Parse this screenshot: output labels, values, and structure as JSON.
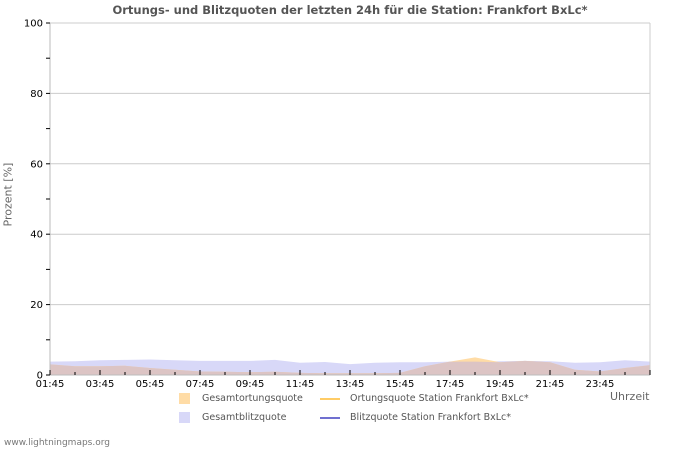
{
  "chart_data": {
    "type": "area",
    "title": "Ortungs- und Blitzquoten der letzten 24h für die Station: Frankfort BxLc*",
    "xlabel": "Uhrzeit",
    "ylabel": "Prozent   [%]",
    "ylim": [
      0,
      100
    ],
    "yticks": [
      0,
      20,
      40,
      60,
      80,
      100
    ],
    "xtick_labels": [
      "01:45",
      "03:45",
      "05:45",
      "07:45",
      "09:45",
      "11:45",
      "13:45",
      "15:45",
      "17:45",
      "19:45",
      "21:45",
      "23:45"
    ],
    "grid": true,
    "legend_position": "bottom",
    "x": [
      "01:45",
      "02:45",
      "03:45",
      "04:45",
      "05:45",
      "06:45",
      "07:45",
      "08:45",
      "09:45",
      "10:45",
      "11:45",
      "12:45",
      "13:45",
      "14:45",
      "15:45",
      "16:45",
      "17:45",
      "18:45",
      "19:45",
      "20:45",
      "21:45",
      "22:45",
      "23:45",
      "00:45",
      "01:45"
    ],
    "series": [
      {
        "name": "Gesamtortungsquote",
        "kind": "area",
        "color": "#ffd9a0",
        "values": [
          3.0,
          2.5,
          2.5,
          2.6,
          2.0,
          1.5,
          1.0,
          0.9,
          0.8,
          0.9,
          0.6,
          0.5,
          0.5,
          0.5,
          0.6,
          2.5,
          3.8,
          5.0,
          3.6,
          4.0,
          3.6,
          1.5,
          1.0,
          2.0,
          2.8
        ]
      },
      {
        "name": "Gesamtblitzquote",
        "kind": "area",
        "color": "#d8d8f8",
        "values": [
          3.8,
          3.9,
          4.2,
          4.3,
          4.4,
          4.2,
          4.0,
          4.0,
          4.0,
          4.3,
          3.5,
          3.7,
          3.1,
          3.5,
          3.6,
          3.6,
          3.8,
          3.8,
          3.9,
          4.0,
          3.9,
          3.5,
          3.6,
          4.2,
          3.8
        ]
      },
      {
        "name": "Ortungsquote Station Frankfort BxLc*",
        "kind": "line",
        "color": "#ffcc66",
        "values": []
      },
      {
        "name": "Blitzquote Station Frankfort BxLc*",
        "kind": "line",
        "color": "#7070d0",
        "values": []
      }
    ]
  },
  "legend": {
    "items": [
      {
        "label": "Gesamtortungsquote",
        "color": "#ffd9a0"
      },
      {
        "label": "Ortungsquote Station Frankfort BxLc*",
        "color": "#ffcc66"
      },
      {
        "label": "Gesamtblitzquote",
        "color": "#d8d8f8"
      },
      {
        "label": "Blitzquote Station Frankfort BxLc*",
        "color": "#7070d0"
      }
    ]
  },
  "footer": "www.lightningmaps.org"
}
